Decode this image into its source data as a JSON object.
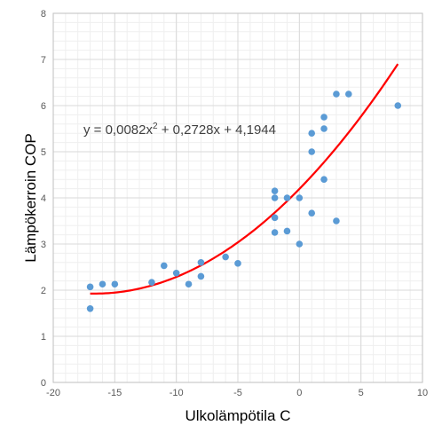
{
  "chart_data": {
    "type": "scatter",
    "title": "",
    "xlabel": "Ulkolämpötila C",
    "ylabel": "Lämpökerroin COP",
    "xlim": [
      -20,
      10
    ],
    "ylim": [
      0,
      8
    ],
    "x_ticks": [
      -20,
      -15,
      -10,
      -5,
      0,
      5,
      10
    ],
    "y_ticks": [
      0,
      1,
      2,
      3,
      4,
      5,
      6,
      7,
      8
    ],
    "grid": true,
    "legend": "none",
    "points": [
      {
        "x": -17,
        "y": 2.07
      },
      {
        "x": -17,
        "y": 1.6
      },
      {
        "x": -16,
        "y": 2.13
      },
      {
        "x": -15,
        "y": 2.13
      },
      {
        "x": -12,
        "y": 2.17
      },
      {
        "x": -11,
        "y": 2.53
      },
      {
        "x": -10,
        "y": 2.37
      },
      {
        "x": -9,
        "y": 2.13
      },
      {
        "x": -8,
        "y": 2.6
      },
      {
        "x": -8,
        "y": 2.3
      },
      {
        "x": -6,
        "y": 2.72
      },
      {
        "x": -5,
        "y": 2.58
      },
      {
        "x": -2,
        "y": 4.15
      },
      {
        "x": -2,
        "y": 4.0
      },
      {
        "x": -2,
        "y": 3.57
      },
      {
        "x": -2,
        "y": 3.25
      },
      {
        "x": -1,
        "y": 4.0
      },
      {
        "x": -1,
        "y": 3.28
      },
      {
        "x": 0,
        "y": 4.0
      },
      {
        "x": 0,
        "y": 3.0
      },
      {
        "x": 1,
        "y": 5.4
      },
      {
        "x": 1,
        "y": 5.0
      },
      {
        "x": 1,
        "y": 3.67
      },
      {
        "x": 2,
        "y": 5.75
      },
      {
        "x": 2,
        "y": 5.5
      },
      {
        "x": 2,
        "y": 4.4
      },
      {
        "x": 3,
        "y": 6.25
      },
      {
        "x": 3,
        "y": 3.5
      },
      {
        "x": 4,
        "y": 6.25
      },
      {
        "x": 8,
        "y": 6.0
      }
    ],
    "trendline": {
      "type": "polynomial",
      "coefficients": {
        "a": 0.0082,
        "b": 0.2728,
        "c": 4.1944
      },
      "x_range": [
        -17,
        8
      ],
      "color": "#ff0000"
    },
    "equation_prefix": "y = 0,0082x",
    "equation_sup": "2",
    "equation_suffix": " + 0,2728x + 4,1944",
    "colors": {
      "points": "#5b9bd5",
      "trendline": "#ff0000",
      "grid": "#d9d9d9",
      "axis": "#bfbfbf"
    }
  }
}
